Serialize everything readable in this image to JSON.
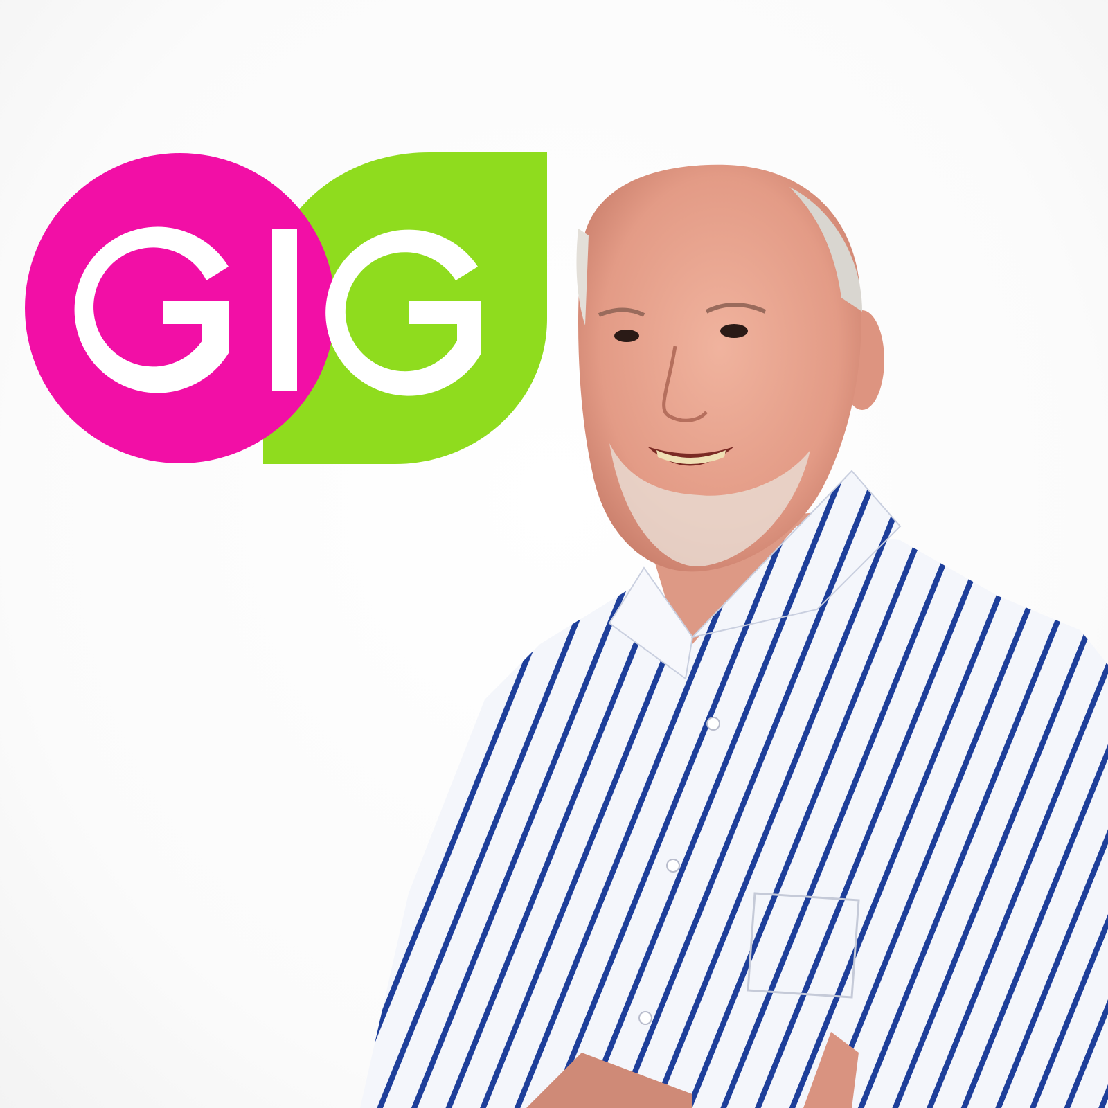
{
  "logo": {
    "text": "GIG",
    "colors": {
      "pink": "#f20fa6",
      "green": "#8fdc1e",
      "letters": "#ffffff"
    }
  },
  "subject": {
    "colors": {
      "skin": "#e8a48f",
      "shirt": "#f4f6fb",
      "stripe": "#1e3f9a",
      "hair": "#d9d6d0"
    }
  }
}
